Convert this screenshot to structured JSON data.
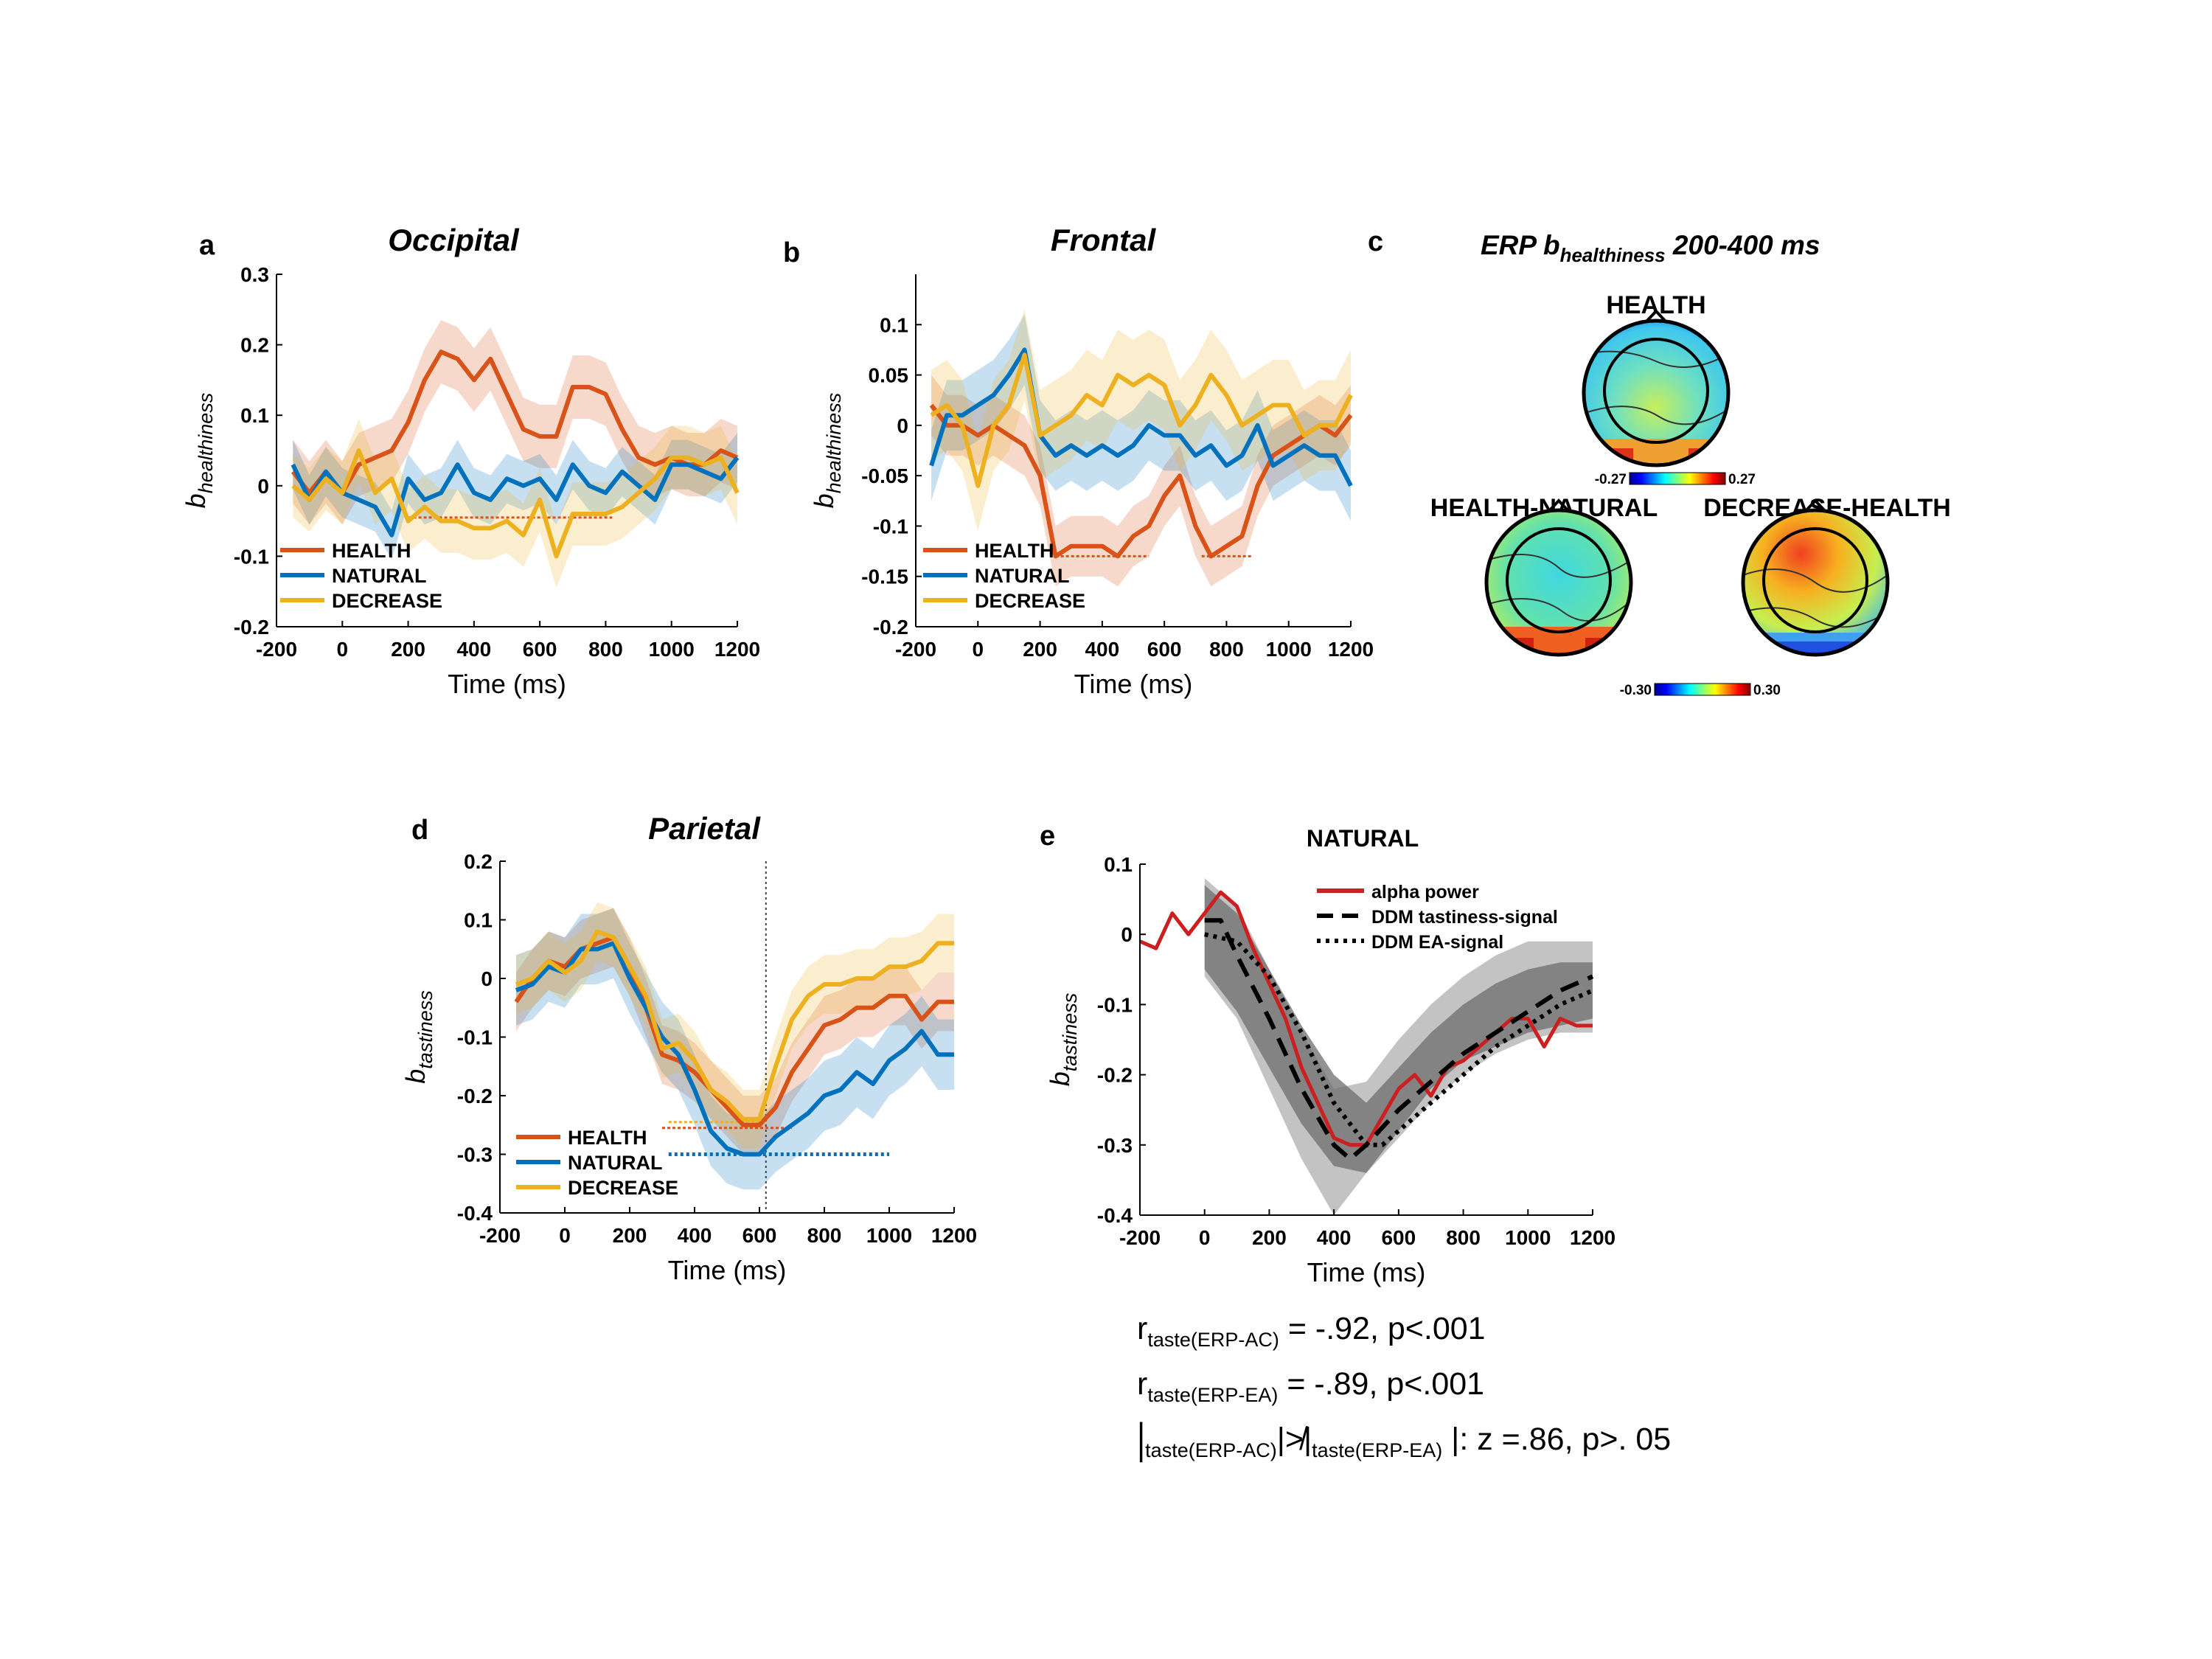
{
  "colors": {
    "health": "#d95319",
    "natural": "#0072bd",
    "decrease": "#edb120",
    "alpha": "#cc1f1f",
    "ddm": "#000000",
    "band_dark": "#6e6e6e",
    "band_light": "#bdbdbd"
  },
  "panels": {
    "a": {
      "letter": "a",
      "title": "Occipital"
    },
    "b": {
      "letter": "b",
      "title": "Frontal"
    },
    "c": {
      "letter": "c",
      "title_main": "ERP b",
      "title_sub": "healthiness",
      "title_rest": " 200-400 ms",
      "maps": [
        {
          "label": "HEALTH"
        },
        {
          "label": "HEALTH-NATURAL"
        },
        {
          "label": "DECREASE-HEALTH"
        }
      ],
      "colorbar_top": {
        "min_label": "-0.27",
        "max_label": "0.27"
      },
      "colorbar_bottom": {
        "min_label": "-0.30",
        "max_label": "0.30"
      }
    },
    "d": {
      "letter": "d",
      "title": "Parietal"
    },
    "e": {
      "letter": "e",
      "title": "NATURAL"
    }
  },
  "stats": {
    "line1": {
      "r": "r",
      "sub": "taste(ERP-AC)",
      "text": " = -.92, p<.001"
    },
    "line2": {
      "r": "r",
      "sub": "taste(ERP-EA)",
      "text": " =   -.89, p<.001"
    },
    "line3": {
      "bar1": "|",
      "sub1": "taste(ERP-AC)",
      "mid": "|≯|",
      "sub2": "taste(ERP-EA)",
      "text": " |: z =.86, p>. 05"
    }
  },
  "chart_data": [
    {
      "panel": "a",
      "type": "line",
      "title": "Occipital",
      "xlabel": "Time (ms)",
      "ylabel": "b",
      "ylabel_sub": "healthiness",
      "xlim": [
        -200,
        1200
      ],
      "ylim": [
        -0.2,
        0.3
      ],
      "xticks": [
        -200,
        0,
        200,
        400,
        600,
        800,
        1000,
        1200
      ],
      "yticks": [
        -0.2,
        -0.1,
        0,
        0.1,
        0.2,
        0.3
      ],
      "ytick_labels": [
        "-0.2",
        "-0.1",
        "0",
        "0.1",
        "0.2",
        "0.3"
      ],
      "legend_position": "bottom-left",
      "x": [
        -150,
        -100,
        -50,
        0,
        50,
        100,
        150,
        200,
        250,
        300,
        350,
        400,
        450,
        500,
        550,
        600,
        650,
        700,
        750,
        800,
        850,
        900,
        950,
        1000,
        1050,
        1100,
        1150,
        1200
      ],
      "series": [
        {
          "name": "HEALTH",
          "color_key": "health",
          "band": 0.045,
          "values": [
            0.02,
            -0.01,
            0.02,
            -0.01,
            0.03,
            0.04,
            0.05,
            0.09,
            0.15,
            0.19,
            0.18,
            0.15,
            0.18,
            0.13,
            0.08,
            0.07,
            0.07,
            0.14,
            0.14,
            0.13,
            0.08,
            0.04,
            0.03,
            0.04,
            0.03,
            0.03,
            0.05,
            0.04
          ]
        },
        {
          "name": "NATURAL",
          "color_key": "natural",
          "band": 0.035,
          "values": [
            0.03,
            -0.02,
            0.02,
            -0.01,
            -0.02,
            -0.03,
            -0.07,
            0.01,
            -0.02,
            -0.01,
            0.03,
            -0.01,
            -0.02,
            0.01,
            0.0,
            0.01,
            -0.02,
            0.03,
            0.0,
            -0.01,
            0.02,
            0.0,
            -0.02,
            0.03,
            0.03,
            0.02,
            0.01,
            0.04
          ]
        },
        {
          "name": "DECREASE",
          "color_key": "decrease",
          "band": 0.045,
          "values": [
            0.0,
            -0.02,
            0.01,
            -0.01,
            0.05,
            -0.01,
            0.01,
            -0.05,
            -0.03,
            -0.05,
            -0.05,
            -0.06,
            -0.06,
            -0.05,
            -0.07,
            -0.02,
            -0.1,
            -0.04,
            -0.04,
            -0.04,
            -0.03,
            -0.01,
            0.01,
            0.04,
            0.04,
            0.03,
            0.04,
            -0.01
          ]
        }
      ],
      "sig_lines": [
        {
          "color_key": "health",
          "x0": 200,
          "x1": 820,
          "y": -0.045
        }
      ]
    },
    {
      "panel": "b",
      "type": "line",
      "title": "Frontal",
      "xlabel": "Time (ms)",
      "ylabel": "b",
      "ylabel_sub": "healthiness",
      "xlim": [
        -200,
        1200
      ],
      "ylim": [
        -0.2,
        0.15
      ],
      "xticks": [
        -200,
        0,
        200,
        400,
        600,
        800,
        1000,
        1200
      ],
      "yticks": [
        -0.2,
        -0.15,
        -0.1,
        -0.05,
        0,
        0.05,
        0.1
      ],
      "ytick_labels": [
        "-0.2",
        "-0.15",
        "-0.1",
        "-0.05",
        "0",
        "0.05",
        "0.1"
      ],
      "legend_position": "bottom-left",
      "x": [
        -150,
        -100,
        -50,
        0,
        50,
        100,
        150,
        200,
        250,
        300,
        350,
        400,
        450,
        500,
        550,
        600,
        650,
        700,
        750,
        800,
        850,
        900,
        950,
        1000,
        1050,
        1100,
        1150,
        1200
      ],
      "series": [
        {
          "name": "HEALTH",
          "color_key": "health",
          "band": 0.03,
          "values": [
            0.02,
            0.0,
            0.0,
            -0.01,
            0.0,
            -0.01,
            -0.02,
            -0.05,
            -0.13,
            -0.12,
            -0.12,
            -0.12,
            -0.13,
            -0.11,
            -0.1,
            -0.07,
            -0.05,
            -0.1,
            -0.13,
            -0.12,
            -0.11,
            -0.06,
            -0.03,
            -0.02,
            -0.01,
            0.0,
            -0.01,
            0.01
          ]
        },
        {
          "name": "NATURAL",
          "color_key": "natural",
          "band": 0.035,
          "values": [
            -0.04,
            0.01,
            0.01,
            0.02,
            0.03,
            0.05,
            0.075,
            -0.01,
            -0.03,
            -0.02,
            -0.03,
            -0.02,
            -0.03,
            -0.02,
            0.0,
            -0.01,
            -0.01,
            -0.03,
            -0.02,
            -0.04,
            -0.03,
            0.0,
            -0.04,
            -0.03,
            -0.02,
            -0.03,
            -0.03,
            -0.06
          ]
        },
        {
          "name": "DECREASE",
          "color_key": "decrease",
          "band": 0.045,
          "values": [
            0.01,
            0.02,
            0.0,
            -0.06,
            0.0,
            0.02,
            0.07,
            -0.01,
            0.0,
            0.01,
            0.03,
            0.02,
            0.05,
            0.04,
            0.05,
            0.04,
            0.0,
            0.02,
            0.05,
            0.03,
            0.0,
            0.01,
            0.02,
            0.02,
            -0.01,
            0.0,
            0.0,
            0.03
          ]
        }
      ],
      "sig_lines": [
        {
          "color_key": "health",
          "x0": 250,
          "x1": 550,
          "y": -0.13
        },
        {
          "color_key": "health",
          "x0": 720,
          "x1": 880,
          "y": -0.13
        }
      ]
    },
    {
      "panel": "d",
      "type": "line",
      "title": "Parietal",
      "xlabel": "Time (ms)",
      "ylabel": "b",
      "ylabel_sub": "tastiness",
      "xlim": [
        -200,
        1200
      ],
      "ylim": [
        -0.4,
        0.2
      ],
      "xticks": [
        -200,
        0,
        200,
        400,
        600,
        800,
        1000,
        1200
      ],
      "yticks": [
        -0.4,
        -0.3,
        -0.2,
        -0.1,
        0,
        0.1,
        0.2
      ],
      "ytick_labels": [
        "-0.4",
        "-0.3",
        "-0.2",
        "-0.1",
        "0",
        "0.1",
        "0.2"
      ],
      "legend_position": "bottom-left",
      "vline_x": 620,
      "x": [
        -150,
        -100,
        -50,
        0,
        50,
        100,
        150,
        200,
        250,
        300,
        350,
        400,
        450,
        500,
        550,
        600,
        650,
        700,
        750,
        800,
        850,
        900,
        950,
        1000,
        1050,
        1100,
        1150,
        1200
      ],
      "series": [
        {
          "name": "HEALTH",
          "color_key": "health",
          "band": 0.05,
          "values": [
            -0.04,
            0.0,
            0.03,
            0.02,
            0.05,
            0.06,
            0.07,
            0.02,
            -0.05,
            -0.13,
            -0.14,
            -0.16,
            -0.19,
            -0.22,
            -0.25,
            -0.25,
            -0.22,
            -0.16,
            -0.12,
            -0.08,
            -0.07,
            -0.05,
            -0.05,
            -0.03,
            -0.03,
            -0.07,
            -0.04,
            -0.04
          ]
        },
        {
          "name": "NATURAL",
          "color_key": "natural",
          "band": 0.06,
          "values": [
            -0.02,
            -0.01,
            0.02,
            0.01,
            0.05,
            0.05,
            0.06,
            0.0,
            -0.05,
            -0.1,
            -0.13,
            -0.19,
            -0.26,
            -0.29,
            -0.3,
            -0.3,
            -0.27,
            -0.25,
            -0.23,
            -0.2,
            -0.19,
            -0.16,
            -0.18,
            -0.14,
            -0.12,
            -0.09,
            -0.13,
            -0.13
          ]
        },
        {
          "name": "DECREASE",
          "color_key": "decrease",
          "band": 0.05,
          "values": [
            -0.01,
            0.0,
            0.03,
            0.01,
            0.03,
            0.08,
            0.07,
            0.02,
            -0.03,
            -0.12,
            -0.11,
            -0.14,
            -0.19,
            -0.21,
            -0.24,
            -0.24,
            -0.15,
            -0.07,
            -0.03,
            -0.01,
            -0.01,
            0.0,
            0.0,
            0.02,
            0.02,
            0.03,
            0.06,
            0.06
          ]
        }
      ],
      "sig_lines": [
        {
          "color_key": "decrease",
          "x0": 320,
          "x1": 600,
          "y": -0.245
        },
        {
          "color_key": "health",
          "x0": 300,
          "x1": 700,
          "y": -0.255
        },
        {
          "color_key": "natural",
          "x0": 320,
          "x1": 1000,
          "y": -0.3,
          "thick": true
        }
      ]
    },
    {
      "panel": "e",
      "type": "line",
      "title": "NATURAL",
      "xlabel": "Time (ms)",
      "ylabel": "b",
      "ylabel_sub": "tastiness",
      "xlim": [
        -200,
        1200
      ],
      "ylim": [
        -0.4,
        0.1
      ],
      "xticks": [
        -200,
        0,
        200,
        400,
        600,
        800,
        1000,
        1200
      ],
      "yticks": [
        -0.4,
        -0.3,
        -0.2,
        -0.1,
        0,
        0.1
      ],
      "ytick_labels": [
        "-0.4",
        "-0.3",
        "-0.2",
        "-0.1",
        "0",
        "0.1"
      ],
      "legend_position": "top-right",
      "bands": [
        {
          "style": "light",
          "x": [
            0,
            100,
            200,
            300,
            400,
            500,
            600,
            700,
            800,
            900,
            1000,
            1100,
            1200
          ],
          "lo": [
            -0.06,
            -0.12,
            -0.22,
            -0.32,
            -0.4,
            -0.34,
            -0.29,
            -0.24,
            -0.2,
            -0.17,
            -0.15,
            -0.14,
            -0.14
          ],
          "hi": [
            0.08,
            0.04,
            -0.05,
            -0.14,
            -0.22,
            -0.21,
            -0.15,
            -0.1,
            -0.06,
            -0.03,
            -0.01,
            -0.01,
            -0.01
          ]
        },
        {
          "style": "dark",
          "x": [
            0,
            100,
            200,
            300,
            400,
            500,
            600,
            700,
            800,
            900,
            1000,
            1100,
            1200
          ],
          "lo": [
            -0.05,
            -0.11,
            -0.19,
            -0.27,
            -0.33,
            -0.34,
            -0.28,
            -0.22,
            -0.18,
            -0.16,
            -0.14,
            -0.13,
            -0.12
          ],
          "hi": [
            0.07,
            0.03,
            -0.05,
            -0.13,
            -0.2,
            -0.24,
            -0.19,
            -0.14,
            -0.1,
            -0.07,
            -0.05,
            -0.04,
            -0.04
          ]
        }
      ],
      "series": [
        {
          "name": "alpha power",
          "color_key": "alpha",
          "dash": "solid",
          "x": [
            -200,
            -150,
            -100,
            -50,
            0,
            50,
            100,
            150,
            200,
            250,
            300,
            350,
            400,
            450,
            500,
            550,
            600,
            650,
            700,
            750,
            800,
            850,
            900,
            950,
            1000,
            1050,
            1100,
            1150,
            1200
          ],
          "values": [
            -0.01,
            -0.02,
            0.03,
            0.0,
            0.03,
            0.06,
            0.04,
            -0.02,
            -0.07,
            -0.12,
            -0.19,
            -0.24,
            -0.29,
            -0.3,
            -0.3,
            -0.26,
            -0.22,
            -0.2,
            -0.23,
            -0.19,
            -0.18,
            -0.16,
            -0.14,
            -0.12,
            -0.12,
            -0.16,
            -0.12,
            -0.13,
            -0.13
          ]
        },
        {
          "name": "DDM tastiness-signal",
          "color_key": "ddm",
          "dash": "dashed",
          "x": [
            0,
            50,
            100,
            200,
            300,
            400,
            450,
            500,
            600,
            700,
            800,
            900,
            1000,
            1100,
            1200
          ],
          "values": [
            0.02,
            0.02,
            -0.03,
            -0.12,
            -0.22,
            -0.3,
            -0.32,
            -0.3,
            -0.25,
            -0.21,
            -0.17,
            -0.14,
            -0.11,
            -0.08,
            -0.06
          ]
        },
        {
          "name": "DDM EA-signal",
          "color_key": "ddm",
          "dash": "dotted",
          "x": [
            0,
            100,
            200,
            300,
            400,
            500,
            550,
            600,
            700,
            800,
            900,
            1000,
            1100,
            1200
          ],
          "values": [
            0.0,
            -0.01,
            -0.06,
            -0.14,
            -0.24,
            -0.3,
            -0.3,
            -0.28,
            -0.24,
            -0.2,
            -0.16,
            -0.13,
            -0.1,
            -0.08
          ]
        }
      ]
    }
  ]
}
